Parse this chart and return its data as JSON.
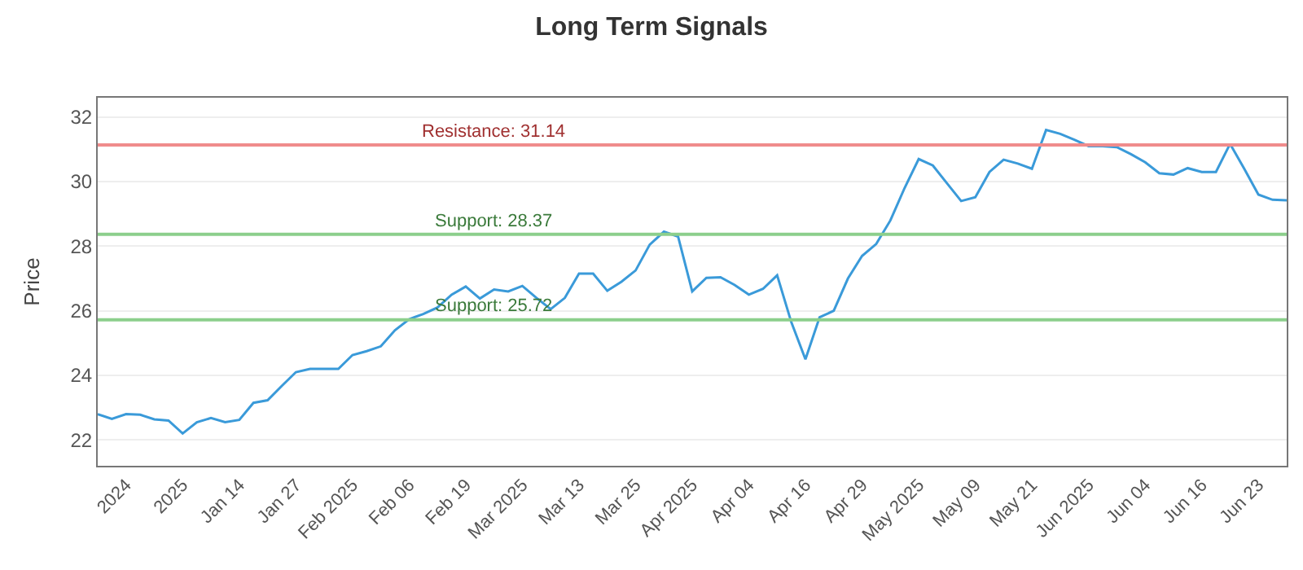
{
  "chart_data": {
    "type": "line",
    "title": "Long Term Signals",
    "ylabel": "Price",
    "categories": [
      null,
      null,
      "2024",
      null,
      null,
      null,
      "2025",
      null,
      null,
      null,
      "Jan 14",
      null,
      null,
      null,
      "Jan 27",
      null,
      null,
      null,
      "Feb 2025",
      null,
      null,
      null,
      "Feb 06",
      null,
      null,
      null,
      "Feb 19",
      null,
      null,
      null,
      "Mar 2025",
      null,
      null,
      null,
      "Mar 13",
      null,
      null,
      null,
      "Mar 25",
      null,
      null,
      null,
      "Apr 2025",
      null,
      null,
      null,
      "Apr 04",
      null,
      null,
      null,
      "Apr 16",
      null,
      null,
      null,
      "Apr 29",
      null,
      null,
      null,
      "May 2025",
      null,
      null,
      null,
      "May 09",
      null,
      null,
      null,
      "May 21",
      null,
      null,
      null,
      "Jun 2025",
      null,
      null,
      null,
      "Jun 04",
      null,
      null,
      null,
      "Jun 16",
      null,
      null,
      null,
      "Jun 23",
      null,
      null
    ],
    "series": [
      {
        "color": "#3a9ad9",
        "values": [
          22.8,
          22.65,
          22.8,
          22.78,
          22.64,
          22.6,
          22.2,
          22.55,
          22.68,
          22.55,
          22.62,
          23.15,
          23.23,
          23.67,
          24.1,
          24.2,
          24.2,
          24.2,
          24.63,
          24.75,
          24.9,
          25.4,
          25.74,
          25.9,
          26.1,
          26.5,
          26.75,
          26.38,
          26.66,
          26.6,
          26.77,
          26.4,
          26.05,
          26.4,
          27.15,
          27.15,
          26.62,
          26.9,
          27.25,
          28.05,
          28.45,
          28.3,
          26.6,
          27.02,
          27.04,
          26.8,
          26.5,
          26.68,
          27.1,
          25.65,
          24.5,
          25.8,
          26.0,
          27.0,
          27.7,
          28.07,
          28.8,
          29.8,
          30.7,
          30.5,
          29.95,
          29.4,
          29.52,
          30.3,
          30.68,
          30.56,
          30.4,
          31.6,
          31.48,
          31.3,
          31.1,
          31.1,
          31.07,
          30.85,
          30.6,
          30.26,
          30.22,
          30.42,
          30.3,
          30.3,
          31.17,
          30.4,
          29.6,
          29.44,
          29.42
        ]
      }
    ],
    "ylim": [
      21.2,
      32.6
    ],
    "yticks": [
      22,
      24,
      26,
      28,
      30,
      32
    ],
    "grid": "y",
    "marker": "none",
    "line_style": "solid",
    "ref_lines": [
      {
        "axis": "y",
        "value": 31.14,
        "label": "Resistance: 31.14",
        "color": "#f08c8c"
      },
      {
        "axis": "y",
        "value": 28.37,
        "label": "Support: 28.37",
        "color": "#8ccf8c"
      },
      {
        "axis": "y",
        "value": 25.72,
        "label": "Support: 25.72",
        "color": "#8ccf8c"
      }
    ]
  }
}
